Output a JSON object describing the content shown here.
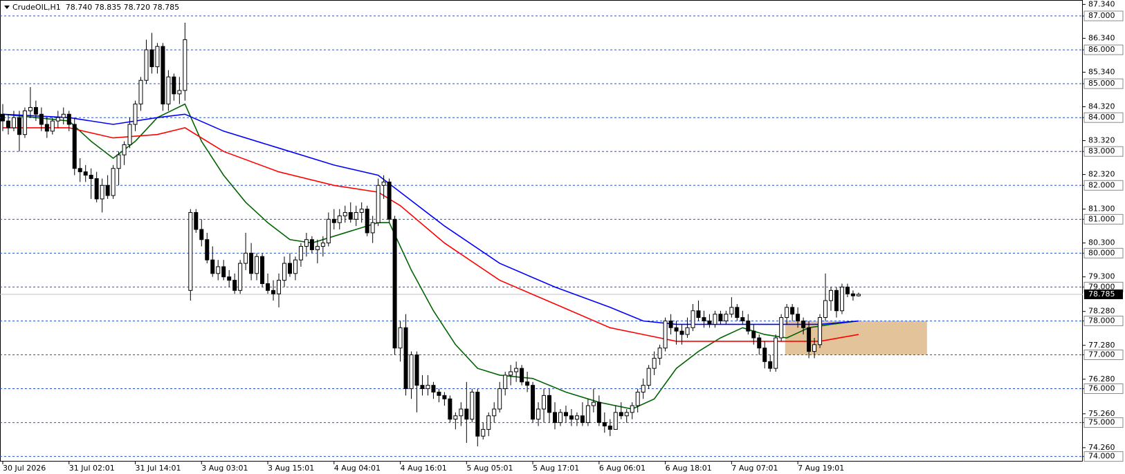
{
  "chart_data": {
    "type": "candlestick",
    "title": "CrudeOIL,H1  78.740 78.835 78.720 78.785",
    "ylim": [
      73.85,
      87.47
    ],
    "yticks": [
      {
        "value": 87.34,
        "label": "87.340"
      },
      {
        "value": 87,
        "label": "87.000"
      },
      {
        "value": 86.34,
        "label": "86.340"
      },
      {
        "value": 86,
        "label": "86.000"
      },
      {
        "value": 85.34,
        "label": "85.340"
      },
      {
        "value": 85,
        "label": "85.000"
      },
      {
        "value": 84.32,
        "label": "84.320"
      },
      {
        "value": 84,
        "label": "84.000"
      },
      {
        "value": 83.32,
        "label": "83.320"
      },
      {
        "value": 83,
        "label": "83.000"
      },
      {
        "value": 82.32,
        "label": "82.320"
      },
      {
        "value": 82,
        "label": "82.000"
      },
      {
        "value": 81.3,
        "label": "81.300"
      },
      {
        "value": 81,
        "label": "81.000"
      },
      {
        "value": 80.3,
        "label": "80.300"
      },
      {
        "value": 80,
        "label": "80.000"
      },
      {
        "value": 79.3,
        "label": "79.300"
      },
      {
        "value": 79,
        "label": "79.000"
      },
      {
        "value": 78.28,
        "label": "78.280"
      },
      {
        "value": 78,
        "label": "78.000"
      },
      {
        "value": 77.28,
        "label": "77.280"
      },
      {
        "value": 77,
        "label": "77.000"
      },
      {
        "value": 76.28,
        "label": "76.280"
      },
      {
        "value": 76,
        "label": "76.000"
      },
      {
        "value": 75.26,
        "label": "75.260"
      },
      {
        "value": 75,
        "label": "75.000"
      },
      {
        "value": 74.26,
        "label": "74.260"
      },
      {
        "value": 74,
        "label": "74.000"
      }
    ],
    "grid": true,
    "grid_color": "#2a52be",
    "last": {
      "value": 78.785,
      "label": "78.785"
    },
    "categories": [
      "30 Jul 2026",
      null,
      null,
      null,
      null,
      null,
      null,
      null,
      null,
      null,
      null,
      null,
      "31 Jul 02:01",
      null,
      null,
      null,
      null,
      null,
      null,
      null,
      null,
      null,
      null,
      null,
      "31 Jul 14:01",
      null,
      null,
      null,
      null,
      null,
      null,
      null,
      null,
      null,
      null,
      null,
      "3 Aug 03:01",
      null,
      null,
      null,
      null,
      null,
      null,
      null,
      null,
      null,
      null,
      null,
      "3 Aug 15:01",
      null,
      null,
      null,
      null,
      null,
      null,
      null,
      null,
      null,
      null,
      null,
      "4 Aug 04:01",
      null,
      null,
      null,
      null,
      null,
      null,
      null,
      null,
      null,
      null,
      null,
      "4 Aug 16:01",
      null,
      null,
      null,
      null,
      null,
      null,
      null,
      null,
      null,
      null,
      null,
      "5 Aug 05:01",
      null,
      null,
      null,
      null,
      null,
      null,
      null,
      null,
      null,
      null,
      null,
      "5 Aug 17:01",
      null,
      null,
      null,
      null,
      null,
      null,
      null,
      null,
      null,
      null,
      null,
      "6 Aug 06:01",
      null,
      null,
      null,
      null,
      null,
      null,
      null,
      null,
      null,
      null,
      null,
      "6 Aug 18:01",
      null,
      null,
      null,
      null,
      null,
      null,
      null,
      null,
      null,
      null,
      null,
      "7 Aug 07:01",
      null,
      null,
      null,
      null,
      null,
      null,
      null,
      null,
      null,
      null,
      null,
      "7 Aug 19:01",
      null,
      null,
      null,
      null,
      null,
      null,
      null,
      null,
      null,
      null,
      null
    ],
    "ohlc": [
      [
        84.1,
        84.4,
        83.6,
        83.9
      ],
      [
        83.9,
        84.1,
        83.5,
        83.7
      ],
      [
        83.7,
        84.2,
        83.6,
        84.0
      ],
      [
        84.0,
        84.2,
        83.0,
        83.5
      ],
      [
        83.5,
        84.3,
        83.4,
        84.2
      ],
      [
        84.2,
        84.9,
        84.0,
        84.3
      ],
      [
        84.3,
        84.5,
        83.9,
        84.1
      ],
      [
        84.1,
        84.3,
        83.6,
        83.8
      ],
      [
        83.8,
        84.0,
        83.4,
        83.6
      ],
      [
        83.6,
        84.0,
        83.5,
        83.9
      ],
      [
        83.9,
        84.2,
        83.7,
        84.0
      ],
      [
        84.0,
        84.3,
        83.8,
        84.1
      ],
      [
        84.1,
        84.2,
        83.6,
        83.8
      ],
      [
        83.8,
        84.0,
        82.3,
        82.5
      ],
      [
        82.5,
        82.8,
        82.1,
        82.4
      ],
      [
        82.4,
        82.6,
        82.1,
        82.3
      ],
      [
        82.3,
        82.5,
        81.6,
        82.2
      ],
      [
        82.2,
        82.4,
        81.5,
        81.6
      ],
      [
        81.6,
        82.2,
        81.2,
        82.0
      ],
      [
        82.0,
        82.3,
        81.6,
        81.7
      ],
      [
        81.7,
        82.6,
        81.6,
        82.5
      ],
      [
        82.5,
        83.0,
        82.0,
        82.9
      ],
      [
        82.9,
        83.3,
        82.6,
        83.2
      ],
      [
        83.2,
        84.0,
        83.1,
        83.8
      ],
      [
        83.8,
        84.5,
        83.6,
        84.4
      ],
      [
        84.4,
        85.2,
        84.2,
        85.1
      ],
      [
        85.1,
        86.3,
        85.0,
        86.0
      ],
      [
        86.0,
        86.5,
        85.3,
        85.5
      ],
      [
        85.5,
        86.2,
        85.3,
        86.1
      ],
      [
        86.1,
        86.2,
        84.2,
        84.4
      ],
      [
        84.4,
        85.4,
        84.2,
        85.2
      ],
      [
        85.2,
        85.3,
        84.5,
        84.7
      ],
      [
        84.7,
        85.2,
        84.4,
        84.8
      ],
      [
        84.8,
        86.8,
        84.5,
        86.3
      ],
      [
        78.9,
        81.3,
        78.6,
        81.2
      ],
      [
        81.2,
        81.3,
        80.6,
        80.7
      ],
      [
        80.7,
        81.0,
        80.2,
        80.4
      ],
      [
        80.4,
        80.6,
        79.7,
        79.8
      ],
      [
        79.8,
        80.2,
        79.3,
        79.4
      ],
      [
        79.4,
        79.8,
        79.2,
        79.6
      ],
      [
        79.6,
        79.8,
        79.2,
        79.3
      ],
      [
        79.3,
        79.5,
        79.0,
        79.2
      ],
      [
        79.2,
        79.4,
        78.8,
        78.9
      ],
      [
        78.9,
        79.8,
        78.8,
        79.7
      ],
      [
        79.7,
        80.6,
        79.5,
        80.0
      ],
      [
        80.0,
        80.3,
        79.2,
        79.4
      ],
      [
        79.4,
        80.0,
        79.2,
        79.9
      ],
      [
        79.9,
        80.0,
        79.0,
        79.1
      ],
      [
        79.1,
        79.4,
        78.8,
        78.9
      ],
      [
        78.9,
        79.2,
        78.6,
        78.8
      ],
      [
        78.8,
        79.4,
        78.4,
        79.2
      ],
      [
        79.2,
        79.9,
        79.0,
        79.7
      ],
      [
        79.7,
        80.0,
        79.3,
        79.4
      ],
      [
        79.4,
        79.9,
        79.2,
        79.8
      ],
      [
        79.8,
        80.3,
        79.6,
        80.2
      ],
      [
        80.2,
        80.6,
        79.9,
        80.4
      ],
      [
        80.4,
        80.5,
        80.0,
        80.1
      ],
      [
        80.1,
        80.4,
        79.7,
        80.2
      ],
      [
        80.2,
        80.5,
        79.9,
        80.3
      ],
      [
        80.3,
        81.2,
        80.2,
        81.0
      ],
      [
        81.0,
        81.3,
        80.7,
        80.9
      ],
      [
        80.9,
        81.3,
        80.7,
        81.1
      ],
      [
        81.1,
        81.4,
        80.9,
        81.2
      ],
      [
        81.2,
        81.5,
        80.9,
        81.0
      ],
      [
        81.0,
        81.4,
        80.8,
        81.2
      ],
      [
        81.2,
        81.5,
        80.9,
        81.3
      ],
      [
        81.3,
        81.4,
        80.5,
        80.6
      ],
      [
        80.6,
        81.1,
        80.3,
        80.9
      ],
      [
        80.9,
        82.2,
        80.8,
        82.0
      ],
      [
        82.0,
        82.3,
        81.6,
        82.1
      ],
      [
        82.1,
        82.2,
        80.9,
        81.0
      ],
      [
        81.0,
        81.1,
        77.0,
        77.2
      ],
      [
        77.2,
        78.0,
        76.8,
        77.8
      ],
      [
        77.8,
        78.2,
        75.8,
        76.0
      ],
      [
        76.0,
        77.1,
        75.7,
        77.0
      ],
      [
        77.0,
        77.1,
        75.3,
        76.1
      ],
      [
        76.1,
        76.4,
        75.8,
        76.0
      ],
      [
        76.0,
        76.4,
        75.8,
        76.1
      ],
      [
        76.1,
        76.2,
        75.7,
        75.9
      ],
      [
        75.9,
        76.0,
        75.6,
        75.8
      ],
      [
        75.8,
        75.9,
        75.5,
        75.7
      ],
      [
        75.7,
        75.8,
        75.0,
        75.1
      ],
      [
        75.1,
        75.3,
        74.8,
        75.2
      ],
      [
        75.2,
        75.6,
        74.9,
        75.4
      ],
      [
        75.4,
        76.2,
        74.4,
        75.1
      ],
      [
        75.1,
        76.0,
        75.0,
        75.9
      ],
      [
        75.9,
        76.0,
        74.3,
        74.6
      ],
      [
        74.6,
        75.0,
        74.5,
        74.8
      ],
      [
        74.8,
        75.3,
        74.6,
        75.2
      ],
      [
        75.2,
        75.6,
        75.0,
        75.4
      ],
      [
        75.4,
        76.2,
        75.3,
        76.0
      ],
      [
        76.0,
        76.5,
        75.8,
        76.4
      ],
      [
        76.4,
        76.7,
        76.1,
        76.5
      ],
      [
        76.5,
        76.8,
        76.2,
        76.6
      ],
      [
        76.6,
        76.7,
        76.1,
        76.2
      ],
      [
        76.2,
        76.5,
        75.9,
        76.1
      ],
      [
        76.1,
        76.2,
        75.0,
        75.1
      ],
      [
        75.1,
        75.6,
        74.9,
        75.4
      ],
      [
        75.4,
        76.0,
        75.0,
        75.8
      ],
      [
        75.8,
        76.0,
        75.0,
        75.3
      ],
      [
        75.3,
        75.6,
        74.8,
        75.0
      ],
      [
        75.0,
        75.4,
        74.9,
        75.3
      ],
      [
        75.3,
        75.5,
        75.0,
        75.2
      ],
      [
        75.2,
        75.4,
        74.9,
        75.1
      ],
      [
        75.1,
        75.3,
        74.9,
        75.2
      ],
      [
        75.2,
        75.6,
        74.9,
        75.0
      ],
      [
        75.0,
        75.7,
        74.9,
        75.5
      ],
      [
        75.5,
        76.0,
        75.3,
        75.6
      ],
      [
        75.6,
        75.8,
        74.9,
        75.0
      ],
      [
        75.0,
        75.3,
        74.7,
        74.9
      ],
      [
        74.9,
        75.1,
        74.6,
        74.8
      ],
      [
        74.8,
        75.5,
        74.8,
        75.3
      ],
      [
        75.3,
        75.6,
        75.1,
        75.2
      ],
      [
        75.2,
        75.4,
        75.0,
        75.3
      ],
      [
        75.3,
        75.6,
        75.1,
        75.5
      ],
      [
        75.5,
        76.0,
        75.3,
        75.9
      ],
      [
        75.9,
        76.3,
        75.7,
        76.1
      ],
      [
        76.1,
        76.7,
        76.0,
        76.6
      ],
      [
        76.6,
        77.1,
        76.4,
        76.9
      ],
      [
        76.9,
        77.3,
        76.7,
        77.2
      ],
      [
        77.2,
        78.1,
        77.1,
        78.0
      ],
      [
        78.0,
        78.2,
        77.6,
        77.8
      ],
      [
        77.8,
        78.0,
        77.3,
        77.7
      ],
      [
        77.7,
        77.9,
        77.3,
        77.6
      ],
      [
        77.6,
        78.1,
        77.5,
        77.8
      ],
      [
        77.8,
        78.5,
        77.7,
        78.3
      ],
      [
        78.3,
        78.6,
        78.0,
        78.1
      ],
      [
        78.1,
        78.3,
        77.8,
        78.0
      ],
      [
        78.0,
        78.2,
        77.8,
        77.9
      ],
      [
        77.9,
        78.3,
        77.8,
        78.2
      ],
      [
        78.2,
        78.3,
        77.9,
        78.0
      ],
      [
        78.0,
        78.3,
        77.9,
        78.2
      ],
      [
        78.2,
        78.7,
        78.1,
        78.4
      ],
      [
        78.4,
        78.5,
        78.0,
        78.1
      ],
      [
        78.1,
        78.3,
        77.9,
        78.0
      ],
      [
        78.0,
        78.2,
        77.6,
        77.7
      ],
      [
        77.7,
        77.9,
        77.3,
        77.5
      ],
      [
        77.5,
        77.6,
        77.0,
        77.2
      ],
      [
        77.2,
        77.4,
        76.6,
        76.8
      ],
      [
        76.8,
        77.0,
        76.5,
        76.6
      ],
      [
        76.6,
        77.6,
        76.5,
        77.5
      ],
      [
        77.5,
        78.2,
        77.4,
        78.1
      ],
      [
        78.1,
        78.5,
        77.9,
        78.4
      ],
      [
        78.4,
        78.5,
        78.0,
        78.2
      ],
      [
        78.2,
        78.4,
        77.8,
        78.0
      ],
      [
        78.0,
        78.1,
        77.6,
        77.8
      ],
      [
        77.8,
        78.0,
        76.9,
        77.1
      ],
      [
        77.1,
        77.5,
        76.9,
        77.3
      ],
      [
        77.3,
        78.2,
        77.2,
        78.1
      ],
      [
        78.1,
        79.4,
        78.0,
        78.6
      ],
      [
        78.6,
        79.0,
        78.3,
        78.9
      ],
      [
        78.9,
        79.0,
        78.1,
        78.3
      ],
      [
        78.3,
        79.1,
        78.2,
        79.0
      ],
      [
        79.0,
        79.1,
        78.7,
        78.8
      ],
      [
        78.8,
        78.9,
        78.6,
        78.74
      ],
      [
        78.74,
        78.835,
        78.72,
        78.785
      ]
    ],
    "zone": {
      "x": [
        141.7,
        167.4
      ],
      "y": [
        77,
        78
      ],
      "color": "#deb887"
    },
    "series": [
      {
        "color": "#006400",
        "x": [
          0,
          6,
          12,
          16,
          20,
          24,
          28,
          33,
          36,
          40,
          44,
          48,
          52,
          56,
          60,
          64,
          68,
          70,
          74,
          78,
          82,
          86,
          90,
          96,
          102,
          108,
          114,
          118,
          122,
          126,
          130,
          134,
          138,
          142,
          146,
          150,
          155
        ],
        "values": [
          84.1,
          84.0,
          83.9,
          83.3,
          82.8,
          83.3,
          84.0,
          84.4,
          83.3,
          82.3,
          81.5,
          80.9,
          80.4,
          80.3,
          80.5,
          80.7,
          80.9,
          80.9,
          79.5,
          78.3,
          77.3,
          76.6,
          76.4,
          76.3,
          75.9,
          75.6,
          75.4,
          75.7,
          76.6,
          77.1,
          77.5,
          77.8,
          77.6,
          77.5,
          77.8,
          77.9,
          78.0
        ]
      },
      {
        "color": "#ff0000",
        "x": [
          0,
          12,
          20,
          28,
          33,
          40,
          50,
          60,
          68,
          72,
          80,
          90,
          100,
          110,
          116,
          122,
          130,
          140,
          148,
          155
        ],
        "values": [
          83.7,
          83.7,
          83.4,
          83.5,
          83.7,
          83.0,
          82.4,
          82.0,
          81.8,
          81.4,
          80.3,
          79.2,
          78.5,
          77.8,
          77.6,
          77.4,
          77.4,
          77.4,
          77.4,
          77.6
        ]
      },
      {
        "color": "#0000ff",
        "x": [
          0,
          12,
          20,
          28,
          33,
          40,
          50,
          60,
          68,
          72,
          80,
          90,
          100,
          110,
          116,
          122,
          130,
          140,
          148,
          155
        ],
        "values": [
          84.1,
          84.0,
          83.8,
          84.0,
          84.1,
          83.6,
          83.1,
          82.6,
          82.3,
          81.8,
          80.8,
          79.7,
          79.0,
          78.4,
          78.0,
          77.9,
          77.9,
          77.9,
          77.9,
          78.0
        ]
      }
    ]
  }
}
